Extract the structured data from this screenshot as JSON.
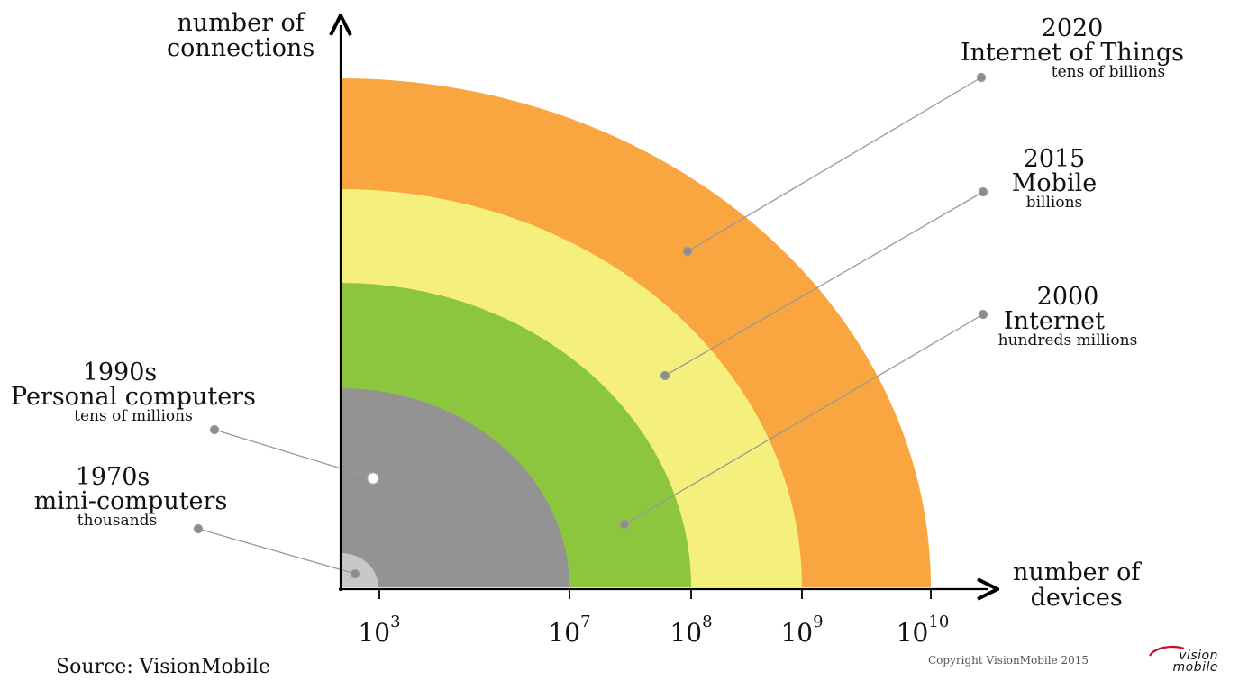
{
  "axes": {
    "y_title": [
      "number of",
      "connections"
    ],
    "x_title": [
      "number of",
      "devices"
    ],
    "ticks": [
      {
        "base": "10",
        "exp": "3"
      },
      {
        "base": "10",
        "exp": "7"
      },
      {
        "base": "10",
        "exp": "8"
      },
      {
        "base": "10",
        "exp": "9"
      },
      {
        "base": "10",
        "exp": "10"
      }
    ]
  },
  "eras": [
    {
      "year": "1970s",
      "name": "mini-computers",
      "scale": "thousands",
      "color": "#c8c8c8"
    },
    {
      "year": "1990s",
      "name": "Personal computers",
      "scale": "tens of millions",
      "color": "#939393"
    },
    {
      "year": "2000",
      "name": "Internet",
      "scale": "hundreds millions",
      "color": "#8cc63f"
    },
    {
      "year": "2015",
      "name": "Mobile",
      "scale": "billions",
      "color": "#f5ef7d"
    },
    {
      "year": "2020",
      "name": "Internet of Things",
      "scale": "tens of billions",
      "color": "#f9a640"
    }
  ],
  "footer": {
    "source": "Source: VisionMobile",
    "copyright": "Copyright VisionMobile 2015",
    "logo_line1": "vision",
    "logo_line2": "mobile"
  }
}
